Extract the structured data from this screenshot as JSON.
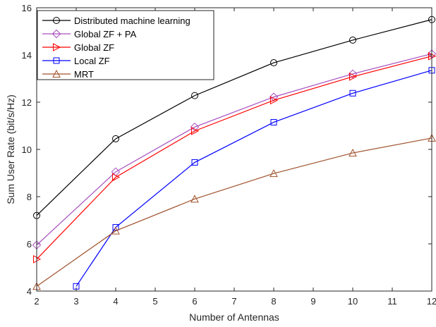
{
  "chart_data": {
    "type": "line",
    "xlabel": "Number of Antennas",
    "ylabel": "Sum User Rate (bit/s/Hz)",
    "xlim": [
      2,
      12
    ],
    "ylim": [
      4,
      16
    ],
    "xticks": [
      2,
      3,
      4,
      5,
      6,
      7,
      8,
      9,
      10,
      11,
      12
    ],
    "yticks": [
      4,
      6,
      8,
      10,
      12,
      14,
      16
    ],
    "grid": false,
    "legend_position": "top-left",
    "series": [
      {
        "name": "Distributed machine learning",
        "color": "#000000",
        "marker": "circle",
        "x": [
          2,
          4,
          6,
          8,
          10,
          12
        ],
        "y": [
          7.2,
          10.45,
          12.28,
          13.67,
          14.63,
          15.5
        ]
      },
      {
        "name": "Global ZF + PA",
        "color": "#a64dbf",
        "marker": "diamond",
        "x": [
          2,
          4,
          6,
          8,
          10,
          12
        ],
        "y": [
          5.95,
          9.05,
          10.95,
          12.22,
          13.2,
          14.05
        ]
      },
      {
        "name": "Global ZF",
        "color": "#ff0000",
        "marker": "triangle-right",
        "x": [
          2,
          4,
          6,
          8,
          10,
          12
        ],
        "y": [
          5.35,
          8.82,
          10.78,
          12.08,
          13.08,
          13.95
        ]
      },
      {
        "name": "Local ZF",
        "color": "#0000ff",
        "marker": "square",
        "x": [
          3,
          4,
          6,
          8,
          10,
          12
        ],
        "y": [
          4.2,
          6.7,
          9.45,
          11.15,
          12.38,
          13.35
        ]
      },
      {
        "name": "MRT",
        "color": "#a0522d",
        "marker": "triangle-up",
        "x": [
          2,
          4,
          6,
          8,
          10,
          12
        ],
        "y": [
          4.2,
          6.55,
          7.9,
          8.98,
          9.85,
          10.48
        ]
      }
    ]
  }
}
